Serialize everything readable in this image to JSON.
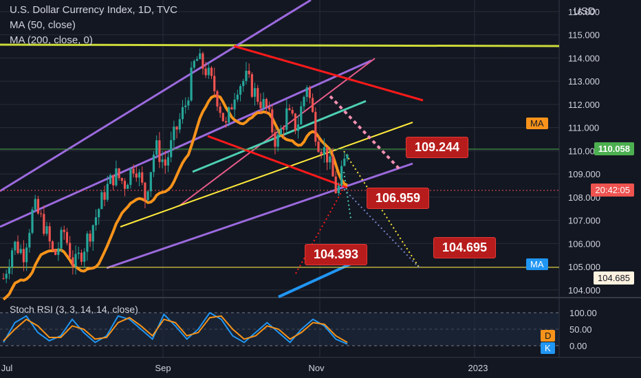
{
  "header": {
    "title": "U.S. Dollar Currency Index, 1D, TVC",
    "ma50": "MA (50, close)",
    "ma200": "MA (200, close, 0)",
    "currency": "USD"
  },
  "price_axis": {
    "ticks": [
      "116.000",
      "115.000",
      "114.000",
      "113.000",
      "112.000",
      "111.000",
      "110.000",
      "109.000",
      "108.000",
      "107.000",
      "106.000",
      "105.000",
      "104.000"
    ],
    "current_price": "110.058",
    "countdown": "20:42:05",
    "ma200_price": "104.685",
    "ma_tag": "MA",
    "ma_tag2": "MA"
  },
  "time_axis": {
    "labels": [
      "Jul",
      "Sep",
      "Nov",
      "2023"
    ]
  },
  "annotations": {
    "a1": "109.244",
    "a2": "106.959",
    "a3": "104.393",
    "a4": "104.695"
  },
  "stoch_rsi": {
    "label": "Stoch RSI (3, 3, 14, 14, close)",
    "ticks": [
      "100.00",
      "50.00",
      "0.00"
    ],
    "d_tag": "D",
    "k_tag": "K"
  },
  "colors": {
    "bg": "#131722",
    "up": "#26a69a",
    "down": "#ef5350",
    "ma50": "#f7931a",
    "ma200": "#2196f3",
    "channel": "#9c6ade",
    "trend_red": "#ff1a1a",
    "yellow": "#ffeb3b",
    "lime": "#cddc39"
  },
  "chart_data": {
    "type": "candlestick",
    "title": "U.S. Dollar Currency Index, 1D, TVC",
    "ylim": [
      103.7,
      116.5
    ],
    "x_labels": [
      "Jul",
      "Sep",
      "Nov",
      "2023"
    ],
    "close_path": [
      104.5,
      106.0,
      105.6,
      107.6,
      106.8,
      105.4,
      106.5,
      105.0,
      105.9,
      107.0,
      108.2,
      109.0,
      108.6,
      109.5,
      108.0,
      110.2,
      109.4,
      110.8,
      112.0,
      114.0,
      113.5,
      112.5,
      111.0,
      112.8,
      113.1,
      112.4,
      111.8,
      110.3,
      111.6,
      111.0,
      112.9,
      110.5,
      109.8,
      108.1,
      110.058
    ],
    "key_levels": [
      109.244,
      106.959,
      104.393,
      104.695
    ],
    "stoch_rsi": {
      "ylim": [
        0,
        100
      ],
      "k": [
        10,
        70,
        90,
        40,
        15,
        30,
        80,
        40,
        10,
        30,
        90,
        80,
        50,
        20,
        95,
        60,
        20,
        50,
        100,
        80,
        30,
        10,
        40,
        70,
        40,
        10,
        50,
        80,
        60,
        20,
        5
      ],
      "d": [
        15,
        50,
        80,
        60,
        25,
        25,
        60,
        50,
        20,
        25,
        70,
        85,
        60,
        30,
        80,
        70,
        30,
        40,
        85,
        90,
        50,
        20,
        30,
        60,
        50,
        20,
        40,
        70,
        65,
        30,
        10
      ]
    }
  }
}
